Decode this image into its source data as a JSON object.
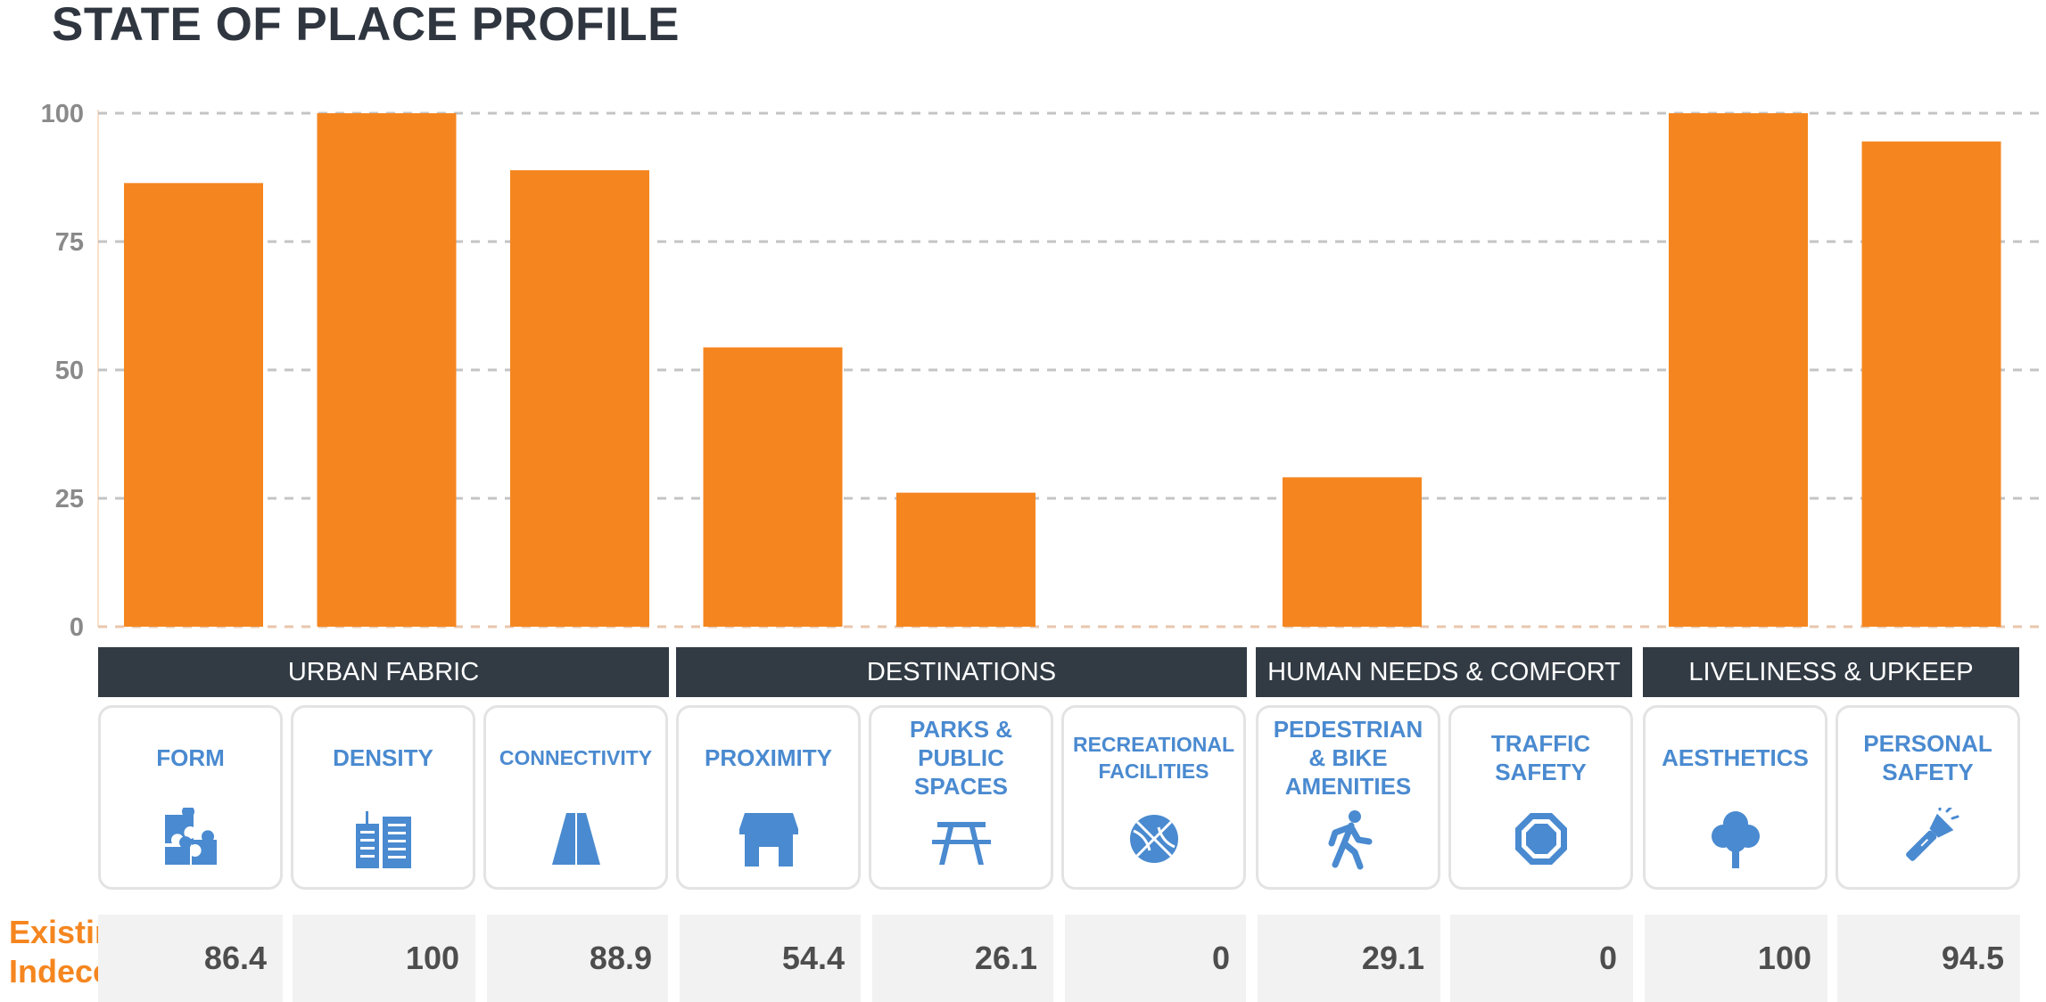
{
  "title": "STATE OF PLACE PROFILE",
  "chart_data": {
    "type": "bar",
    "ylim": [
      0,
      100
    ],
    "yticks": [
      0,
      25,
      50,
      75,
      100
    ],
    "grid": true,
    "bar_color": "#f5861f",
    "categories": [
      "FORM",
      "DENSITY",
      "CONNECTIVITY",
      "PROXIMITY",
      "PARKS & PUBLIC SPACES",
      "RECREATIONAL FACILITIES",
      "PEDESTRIAN & BIKE AMENITIES",
      "TRAFFIC SAFETY",
      "AESTHETICS",
      "PERSONAL SAFETY"
    ],
    "values": [
      86.4,
      100,
      88.9,
      54.4,
      26.1,
      0,
      29.1,
      0,
      100,
      94.5
    ]
  },
  "groups": [
    {
      "label": "URBAN FABRIC"
    },
    {
      "label": "DESTINATIONS"
    },
    {
      "label": "HUMAN NEEDS & COMFORT"
    },
    {
      "label": "LIVELINESS & UPKEEP"
    }
  ],
  "cards": [
    {
      "label": "FORM",
      "icon": "puzzle-icon"
    },
    {
      "label": "DENSITY",
      "icon": "buildings-icon"
    },
    {
      "label": "CONNECTIVITY",
      "icon": "road-icon"
    },
    {
      "label": "PROXIMITY",
      "icon": "storefront-icon"
    },
    {
      "label": "PARKS &\nPUBLIC\nSPACES",
      "icon": "picnic-table-icon"
    },
    {
      "label": "RECREATIONAL\nFACILITIES",
      "icon": "basketball-icon"
    },
    {
      "label": "PEDESTRIAN\n& BIKE\nAMENITIES",
      "icon": "pedestrian-icon"
    },
    {
      "label": "TRAFFIC\nSAFETY",
      "icon": "stop-sign-icon"
    },
    {
      "label": "AESTHETICS",
      "icon": "tree-icon"
    },
    {
      "label": "PERSONAL\nSAFETY",
      "icon": "flashlight-icon"
    }
  ],
  "existing_label": "Existing\nIndeces",
  "existing_values": [
    "86.4",
    "100",
    "88.9",
    "54.4",
    "26.1",
    "0",
    "29.1",
    "0",
    "100",
    "94.5"
  ],
  "colors": {
    "accent": "#f5861f",
    "header": "#323b44",
    "icon": "#4a8ad0",
    "text": "#4d4d4d"
  }
}
